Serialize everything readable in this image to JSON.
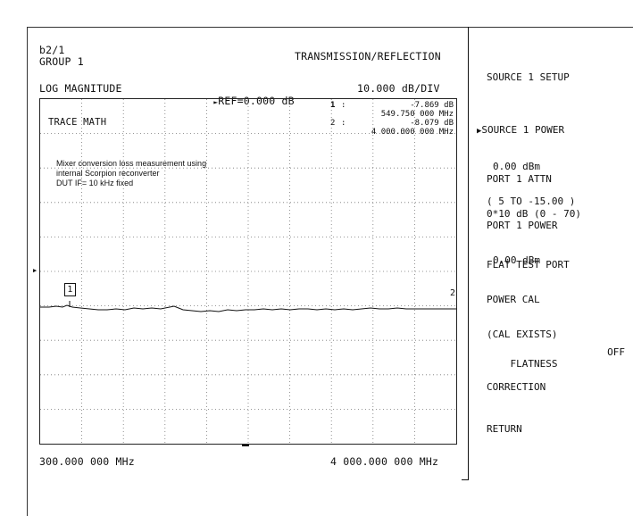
{
  "header": {
    "channel": "b2/1",
    "group": "GROUP 1",
    "mode": "TRANSMISSION/REFLECTION",
    "format": "LOG MAGNITUDE",
    "ref": "REF=0.000 dB",
    "scale": "10.000 dB/DIV"
  },
  "trace": {
    "label": "TRACE MATH",
    "marker_box": "1",
    "marker_end": "2"
  },
  "markers": [
    {
      "num": "1",
      "sep": ":",
      "value": "-7.869 dB",
      "freq": "549.750 000 MHz"
    },
    {
      "num": "2",
      "sep": ":",
      "value": "-8.079 dB",
      "freq": "4 000.000 000 MHz"
    }
  ],
  "annotation": {
    "line1": "Mixer conversion loss measurement using",
    "line2": "internal Scorpion reconverter",
    "line3": "DUT IF= 10 kHz fixed"
  },
  "axis": {
    "start": "300.000 000 MHz",
    "stop": "4 000.000 000 MHz"
  },
  "softkeys": {
    "title": "SOURCE 1 SETUP",
    "source_power": "SOURCE 1 POWER",
    "source_power_value": "0.00 dBm",
    "source_power_range": "( 5 TO -15.00 )",
    "port_attn": "PORT 1 ATTN",
    "port_attn_value": "0*10 dB (0 - 70)",
    "port_power": "PORT 1 POWER",
    "port_power_value": "0.00 dBm",
    "flat_cal_1": "FLAT TEST PORT",
    "flat_cal_2": "POWER CAL",
    "flat_cal_3": "(CAL EXISTS)",
    "flatness_1": "FLATNESS",
    "flatness_state": "OFF",
    "flatness_2": "CORRECTION",
    "return": "RETURN"
  }
}
